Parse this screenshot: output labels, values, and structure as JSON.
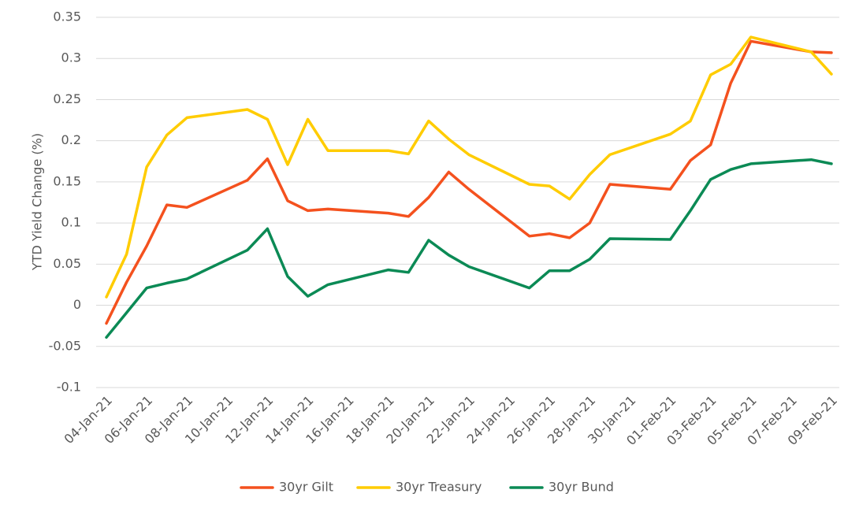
{
  "chart_data": {
    "type": "line",
    "ylabel": "YTD Yield Change (%)",
    "ylim": [
      -0.1,
      0.35
    ],
    "yticks": [
      {
        "value": -0.1,
        "label": "-0.1"
      },
      {
        "value": -0.05,
        "label": "-0.05"
      },
      {
        "value": 0,
        "label": "0"
      },
      {
        "value": 0.05,
        "label": "0.05"
      },
      {
        "value": 0.1,
        "label": "0.1"
      },
      {
        "value": 0.15,
        "label": "0.15"
      },
      {
        "value": 0.2,
        "label": "0.2"
      },
      {
        "value": 0.25,
        "label": "0.25"
      },
      {
        "value": 0.3,
        "label": "0.3"
      },
      {
        "value": 0.35,
        "label": "0.35"
      }
    ],
    "grid": true,
    "legend_position": "bottom",
    "x": [
      "04-Jan-21",
      "05-Jan-21",
      "06-Jan-21",
      "07-Jan-21",
      "08-Jan-21",
      "11-Jan-21",
      "12-Jan-21",
      "13-Jan-21",
      "14-Jan-21",
      "15-Jan-21",
      "18-Jan-21",
      "19-Jan-21",
      "20-Jan-21",
      "21-Jan-21",
      "22-Jan-21",
      "25-Jan-21",
      "26-Jan-21",
      "27-Jan-21",
      "28-Jan-21",
      "29-Jan-21",
      "01-Feb-21",
      "02-Feb-21",
      "03-Feb-21",
      "04-Feb-21",
      "05-Feb-21",
      "08-Feb-21",
      "09-Feb-21"
    ],
    "xtick_labels": [
      "04-Jan-21",
      "06-Jan-21",
      "08-Jan-21",
      "10-Jan-21",
      "12-Jan-21",
      "14-Jan-21",
      "16-Jan-21",
      "18-Jan-21",
      "20-Jan-21",
      "22-Jan-21",
      "24-Jan-21",
      "26-Jan-21",
      "28-Jan-21",
      "30-Jan-21",
      "01-Feb-21",
      "03-Feb-21",
      "05-Feb-21",
      "07-Feb-21",
      "09-Feb-21"
    ],
    "series": [
      {
        "name": "30yr Gilt",
        "color": "#f4511e",
        "values": [
          -0.022,
          0.028,
          0.072,
          0.122,
          0.119,
          0.152,
          0.178,
          0.127,
          0.115,
          0.117,
          0.112,
          0.108,
          0.131,
          0.162,
          0.141,
          0.084,
          0.087,
          0.082,
          0.1,
          0.147,
          0.141,
          0.176,
          0.195,
          0.27,
          0.321,
          0.308,
          0.307
        ]
      },
      {
        "name": "30yr Treasury",
        "color": "#ffcc00",
        "values": [
          0.01,
          0.062,
          0.168,
          0.207,
          0.228,
          0.238,
          0.226,
          0.171,
          0.226,
          0.188,
          0.188,
          0.184,
          0.224,
          0.202,
          0.183,
          0.147,
          0.145,
          0.129,
          0.159,
          0.183,
          0.208,
          0.224,
          0.28,
          0.293,
          0.326,
          0.308,
          0.281
        ]
      },
      {
        "name": "30yr Bund",
        "color": "#0b8a55",
        "values": [
          -0.039,
          -0.009,
          0.021,
          0.027,
          0.032,
          0.067,
          0.093,
          0.035,
          0.011,
          0.025,
          0.043,
          0.04,
          0.079,
          0.061,
          0.047,
          0.021,
          0.042,
          0.042,
          0.056,
          0.081,
          0.08,
          0.115,
          0.153,
          0.165,
          0.172,
          0.177,
          0.172
        ]
      }
    ]
  }
}
